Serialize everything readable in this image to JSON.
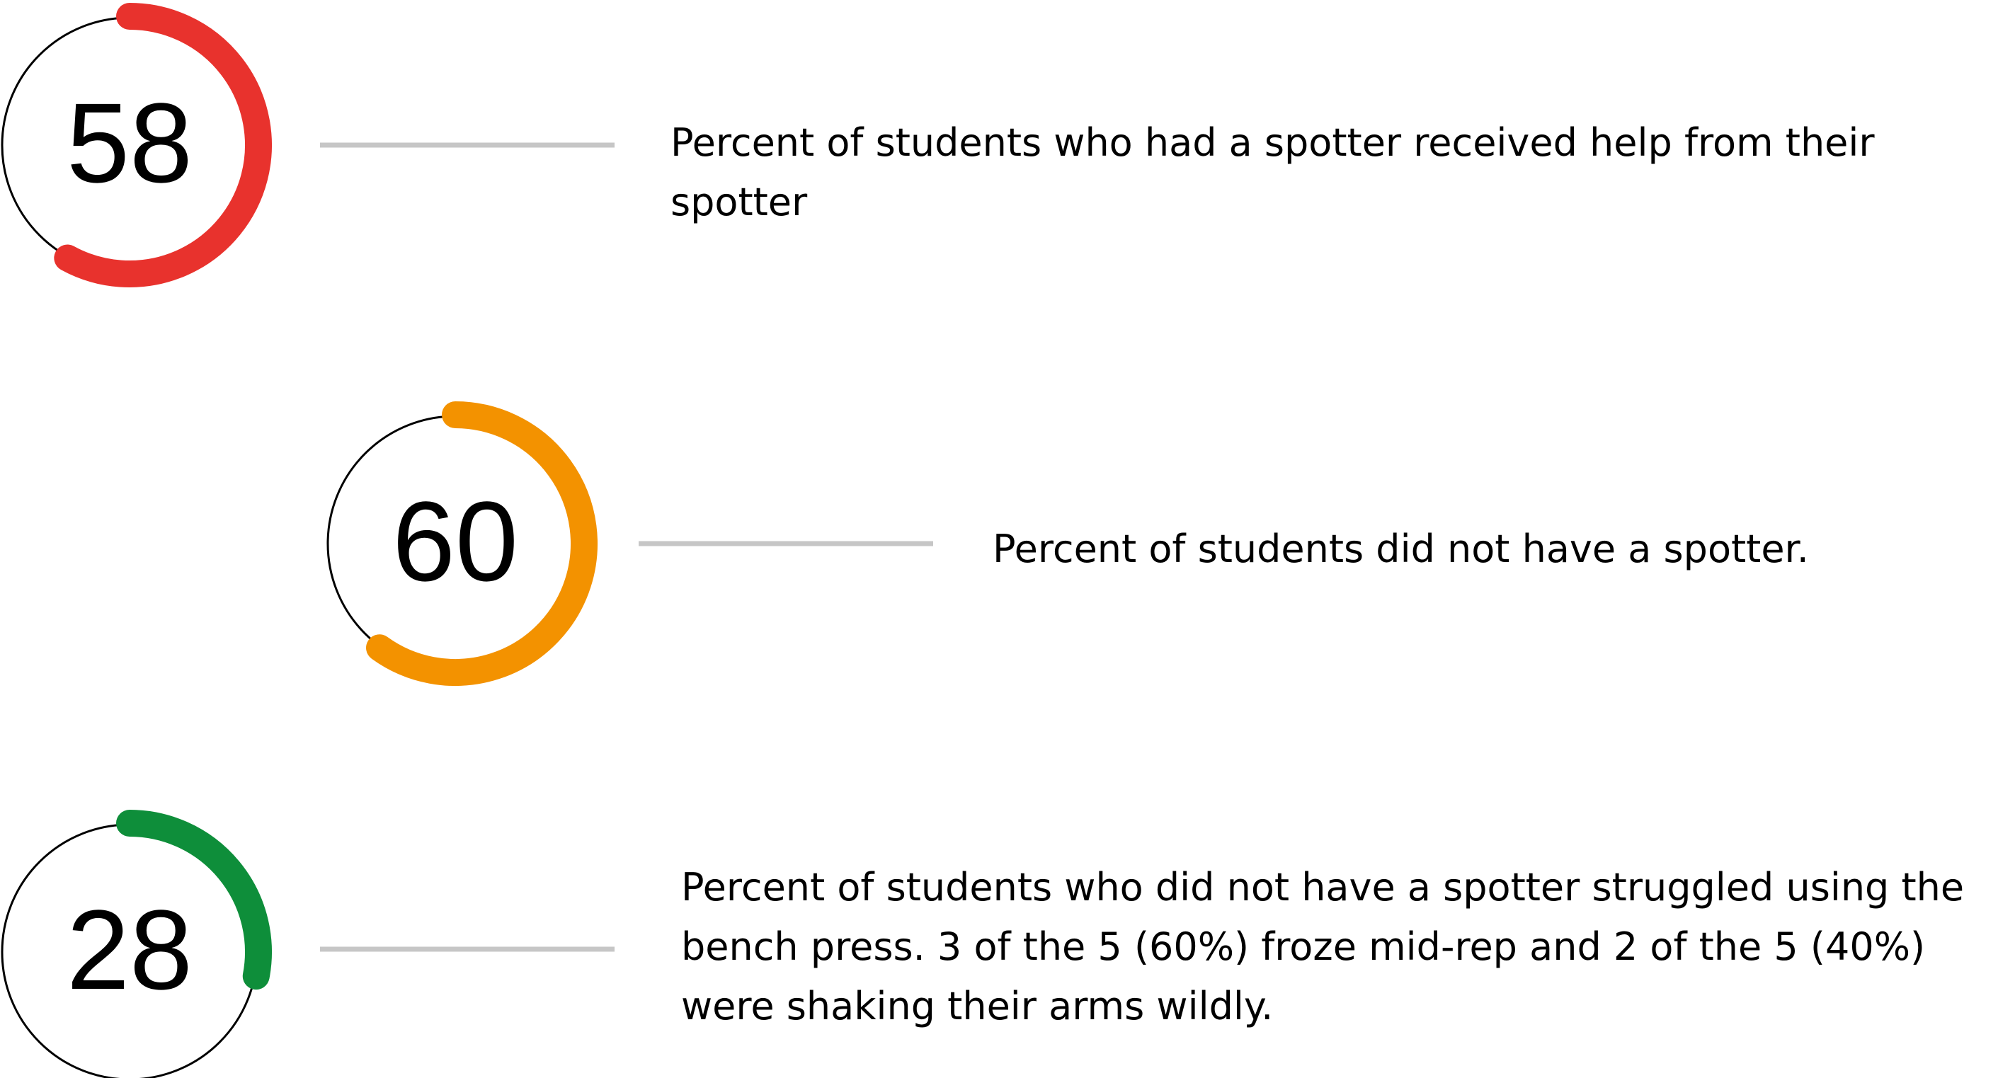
{
  "chart_data": {
    "type": "gauge",
    "items": [
      {
        "value": 58,
        "label": "Percent of students who had a spotter received help from their spotter",
        "color": "#E8322D"
      },
      {
        "value": 60,
        "label": "Percent of students did not have a spotter.",
        "color": "#F39200"
      },
      {
        "value": 28,
        "label": "Percent of students who did not have a spotter struggled using the bench press. 3 of the 5 (60%) froze mid-rep and 2 of the 5 (40%) were shaking their arms wildly.",
        "color": "#0E8E3A"
      }
    ],
    "ring_color": "#000000",
    "connector_color": "#C6C6C6"
  }
}
